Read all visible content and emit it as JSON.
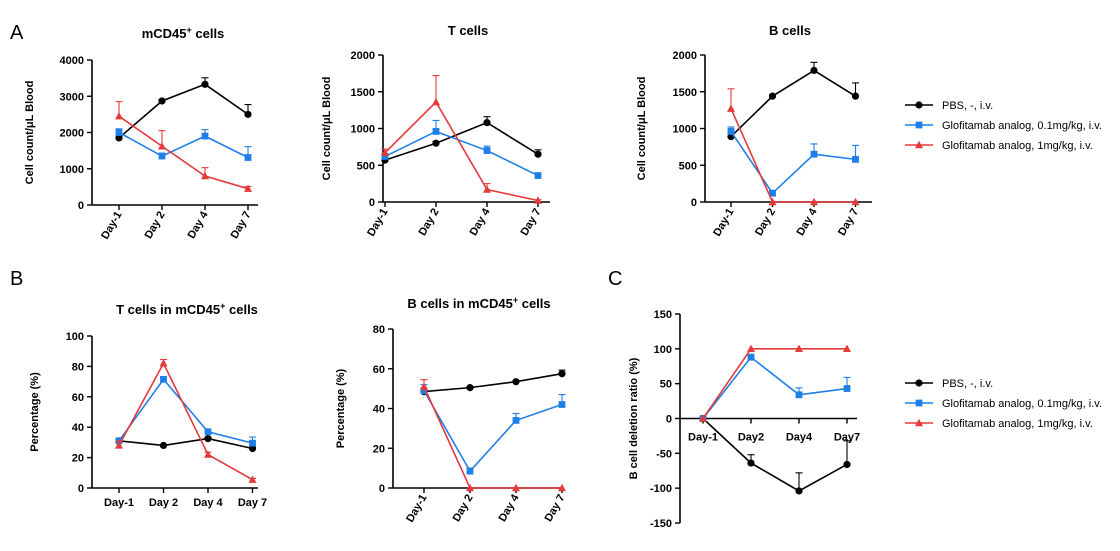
{
  "panel_letters": [
    "A",
    "B",
    "C"
  ],
  "colors": {
    "pbs": "#000000",
    "low": "#1f7fe8",
    "high": "#e5393b"
  },
  "legend_top": {
    "entries": [
      {
        "label": "PBS, -, i.v.",
        "series": "pbs",
        "marker": "circle"
      },
      {
        "label": "Glofitamab analog, 0.1mg/kg, i.v.",
        "series": "low",
        "marker": "square"
      },
      {
        "label": "Glofitamab analog, 1mg/kg, i.v.",
        "series": "high",
        "marker": "triangle"
      }
    ]
  },
  "legend_bottom": {
    "entries": [
      {
        "label": "PBS, -, i.v.",
        "series": "pbs",
        "marker": "circle"
      },
      {
        "label": "Glofitamab analog, 0.1mg/kg, i.v.",
        "series": "low",
        "marker": "square"
      },
      {
        "label": "Glofitamab analog, 1mg/kg, i.v.",
        "series": "high",
        "marker": "triangle"
      }
    ]
  },
  "chart_data": [
    {
      "type": "line",
      "title_main": "mCD45",
      "title_sup": "+",
      "title_rest": " cells",
      "ylabel": "Cell count/μL Blood",
      "categories": [
        "Day-1",
        "Day 2",
        "Day 4",
        "Day 7"
      ],
      "ylim": [
        0,
        4000
      ],
      "yticks": [
        0,
        1000,
        2000,
        3000,
        4000
      ],
      "series": [
        {
          "key": "pbs",
          "values": [
            1850,
            2870,
            3330,
            2500
          ],
          "err": [
            60,
            40,
            180,
            270
          ]
        },
        {
          "key": "low",
          "values": [
            2000,
            1350,
            1900,
            1310
          ],
          "err": [
            100,
            80,
            180,
            300
          ]
        },
        {
          "key": "high",
          "values": [
            2450,
            1620,
            800,
            450
          ],
          "err": [
            400,
            430,
            230,
            60
          ]
        }
      ]
    },
    {
      "type": "line",
      "title_main": "T cells",
      "title_sup": "",
      "title_rest": "",
      "ylabel": "Cell count/μL Blood",
      "categories": [
        "Day-1",
        "Day 2",
        "Day 4",
        "Day 7"
      ],
      "ylim": [
        0,
        2000
      ],
      "yticks": [
        0,
        500,
        1000,
        1500,
        2000
      ],
      "series": [
        {
          "key": "pbs",
          "values": [
            570,
            800,
            1080,
            650
          ],
          "err": [
            30,
            20,
            80,
            60
          ]
        },
        {
          "key": "low",
          "values": [
            620,
            960,
            700,
            360
          ],
          "err": [
            40,
            150,
            60,
            30
          ]
        },
        {
          "key": "high",
          "values": [
            670,
            1360,
            170,
            20
          ],
          "err": [
            50,
            360,
            80,
            10
          ]
        }
      ]
    },
    {
      "type": "line",
      "title_main": "B cells",
      "title_sup": "",
      "title_rest": "",
      "ylabel": "Cell count/μL Blood",
      "categories": [
        "Day-1",
        "Day 2",
        "Day 4",
        "Day 7"
      ],
      "ylim": [
        0,
        2000
      ],
      "yticks": [
        0,
        500,
        1000,
        1500,
        2000
      ],
      "series": [
        {
          "key": "pbs",
          "values": [
            890,
            1440,
            1790,
            1440
          ],
          "err": [
            40,
            20,
            110,
            180
          ]
        },
        {
          "key": "low",
          "values": [
            960,
            120,
            650,
            580
          ],
          "err": [
            60,
            30,
            140,
            190
          ]
        },
        {
          "key": "high",
          "values": [
            1270,
            0,
            0,
            0
          ],
          "err": [
            270,
            0,
            0,
            0
          ]
        }
      ]
    },
    {
      "type": "line",
      "title_main": "T cells in mCD45",
      "title_sup": "+",
      "title_rest": " cells",
      "ylabel": "Percentage (%)",
      "categories": [
        "Day-1",
        "Day 2",
        "Day 4",
        "Day 7"
      ],
      "ylim": [
        0,
        100
      ],
      "yticks": [
        0,
        20,
        40,
        60,
        80,
        100
      ],
      "series": [
        {
          "key": "pbs",
          "values": [
            31,
            28,
            32.5,
            26
          ],
          "err": [
            1,
            0.5,
            0.8,
            1
          ]
        },
        {
          "key": "low",
          "values": [
            31,
            71.5,
            37,
            29.5
          ],
          "err": [
            1.5,
            1.5,
            1,
            4
          ]
        },
        {
          "key": "high",
          "values": [
            28,
            82,
            22,
            5.5
          ],
          "err": [
            3,
            2.5,
            1.5,
            0.8
          ]
        }
      ]
    },
    {
      "type": "line",
      "title_main": "B cells in mCD45",
      "title_sup": "+",
      "title_rest": " cells",
      "ylabel": "Percentage (%)",
      "categories": [
        "Day-1",
        "Day 2",
        "Day 4",
        "Day 7"
      ],
      "ylim": [
        0,
        80
      ],
      "yticks": [
        0,
        20,
        40,
        60,
        80
      ],
      "series": [
        {
          "key": "pbs",
          "values": [
            48.5,
            50.5,
            53.5,
            57.5
          ],
          "err": [
            1,
            0.5,
            0.5,
            1.8
          ]
        },
        {
          "key": "low",
          "values": [
            49,
            8.5,
            34,
            42
          ],
          "err": [
            3,
            1.5,
            3.5,
            5
          ]
        },
        {
          "key": "high",
          "values": [
            51,
            0,
            0,
            0
          ],
          "err": [
            3.5,
            0,
            0,
            0
          ]
        }
      ]
    },
    {
      "type": "line",
      "title_main": "",
      "title_sup": "",
      "title_rest": "",
      "ylabel": "B cell deletion ratio (%)",
      "categories": [
        "Day-1",
        "Day2",
        "Day4",
        "Day7"
      ],
      "ylim": [
        -150,
        150
      ],
      "yticks": [
        -150,
        -100,
        -50,
        0,
        50,
        100,
        150
      ],
      "series": [
        {
          "key": "pbs",
          "values": [
            0,
            -64,
            -104,
            -66
          ],
          "err": [
            0,
            12,
            26,
            34
          ]
        },
        {
          "key": "low",
          "values": [
            0,
            88,
            34,
            43
          ],
          "err": [
            0,
            4,
            10,
            16
          ]
        },
        {
          "key": "high",
          "values": [
            0,
            100,
            100,
            100
          ],
          "err": [
            0,
            0,
            0,
            0
          ]
        }
      ]
    }
  ]
}
